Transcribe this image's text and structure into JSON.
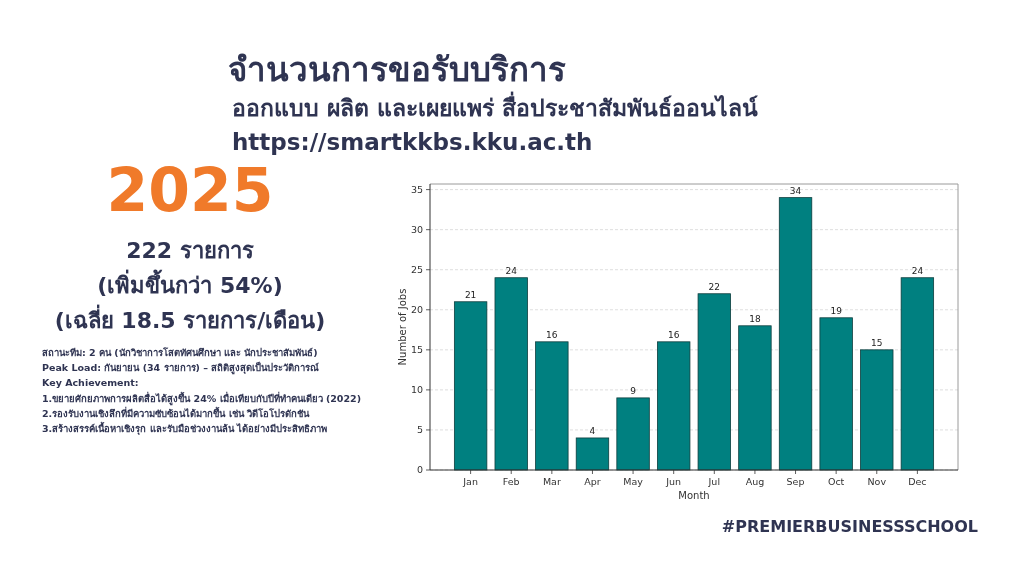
{
  "chart_data": {
    "type": "bar",
    "title": "จำนวนการขอรับบริการ",
    "subtitle": "ออกแบบ ผลิต และเผยแพร่ สื่อประชาสัมพันธ์ออนไลน์",
    "xlabel": "Month",
    "ylabel": "Number of Jobs",
    "categories": [
      "Jan",
      "Feb",
      "Mar",
      "Apr",
      "May",
      "Jun",
      "Jul",
      "Aug",
      "Sep",
      "Oct",
      "Nov",
      "Dec"
    ],
    "values": [
      21,
      24,
      16,
      4,
      9,
      16,
      22,
      18,
      34,
      19,
      15,
      24
    ],
    "color": "#008080",
    "ylim": [
      0,
      35.7
    ],
    "yticks": [
      0,
      5,
      10,
      15,
      20,
      25,
      30,
      35
    ],
    "grid": "y",
    "data_labels": true,
    "annotations": [
      "https://smartkkbs.kku.ac.th",
      "2025",
      "222 รายการ",
      "(เพิ่มขึ้นกว่า 54%)",
      "(เฉลี่ย 18.5 รายการ/เดือน)",
      "สถานะทีม: 2 คน  (นักวิชาการโสตทัศนศึกษา และ นักประชาสัมพันธ์)",
      "Peak Load: กันยายน (34 รายการ) – สถิติสูงสุดเป็นประวัติการณ์",
      "Key Achievement:",
      "1.ขยายศักยภาพการผลิตสื่อได้สูงขึ้น 24% เมื่อเทียบกับปีที่ทำคนเดียว (2022)",
      "2.รองรับงานเชิงลึกที่มีความซับซ้อนได้มากขึ้น เช่น วิดีโอโปรดักชัน",
      "3.สร้างสรรค์เนื้อหาเชิงรุก และรับมือช่วงงานล้น ได้อย่างมีประสิทธิภาพ",
      "#PREMIERBUSINESSSCHOOL"
    ]
  }
}
